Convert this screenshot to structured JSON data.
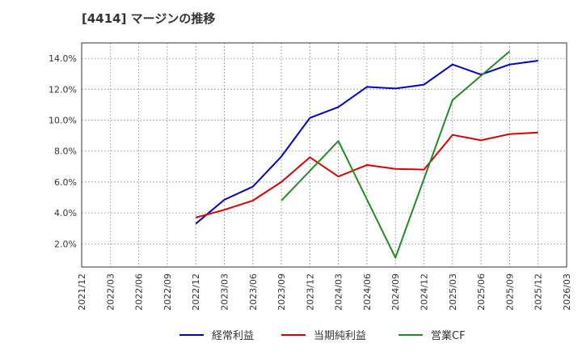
{
  "chart_data": {
    "type": "line",
    "title": "[4414]  マージンの推移",
    "xlabel": "",
    "ylabel": "",
    "x": [
      "2021/12",
      "2022/03",
      "2022/06",
      "2022/09",
      "2022/12",
      "2023/03",
      "2023/06",
      "2023/09",
      "2023/12",
      "2024/03",
      "2024/06",
      "2024/09",
      "2024/12",
      "2025/03",
      "2025/06",
      "2025/09",
      "2025/12",
      "2026/03"
    ],
    "ylim": [
      0.5,
      15.0
    ],
    "yticks": [
      2.0,
      4.0,
      6.0,
      8.0,
      10.0,
      12.0,
      14.0
    ],
    "ytick_labels": [
      "2.0%",
      "4.0%",
      "6.0%",
      "8.0%",
      "10.0%",
      "12.0%",
      "14.0%"
    ],
    "grid": true,
    "legend_position": "bottom",
    "series": [
      {
        "name": "経常利益",
        "color": "#0000cc",
        "values": [
          null,
          null,
          null,
          null,
          3.3,
          4.85,
          5.7,
          7.65,
          10.15,
          10.85,
          12.15,
          12.05,
          12.3,
          13.6,
          12.95,
          13.6,
          13.85,
          null
        ]
      },
      {
        "name": "当期純利益",
        "color": "#dd0000",
        "values": [
          null,
          null,
          null,
          null,
          3.7,
          4.2,
          4.8,
          6.0,
          7.6,
          6.35,
          7.1,
          6.85,
          6.8,
          9.05,
          8.7,
          9.1,
          9.2,
          null
        ]
      },
      {
        "name": "営業CF",
        "color": "#228b22",
        "values": [
          null,
          null,
          null,
          null,
          null,
          null,
          null,
          4.8,
          null,
          8.65,
          null,
          1.1,
          null,
          11.3,
          null,
          14.45,
          null,
          null
        ]
      }
    ]
  }
}
